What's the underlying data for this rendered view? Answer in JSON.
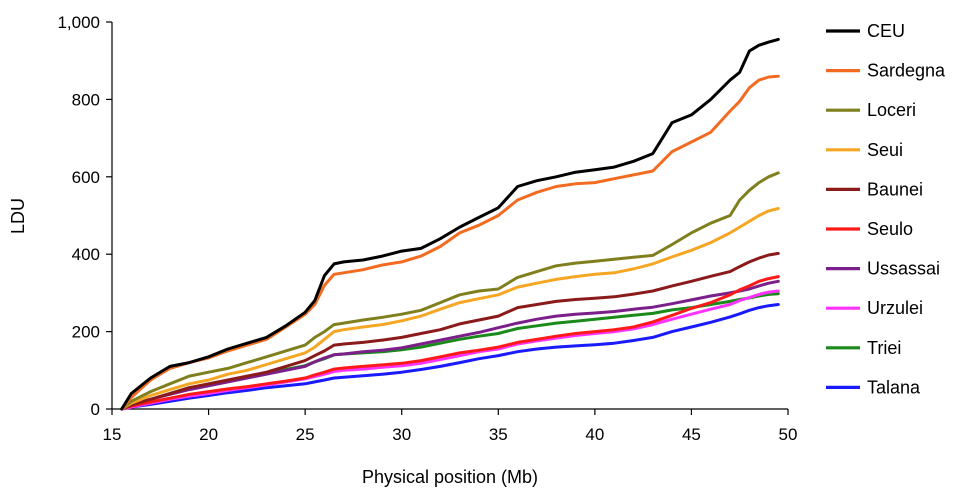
{
  "chart_data": {
    "type": "line",
    "xlabel": "Physical position (Mb)",
    "ylabel": "LDU",
    "xlim": [
      15,
      50
    ],
    "ylim": [
      0,
      1000
    ],
    "x_ticks": [
      "15",
      "20",
      "25",
      "30",
      "35",
      "40",
      "45",
      "50"
    ],
    "y_ticks": [
      "0",
      "200",
      "400",
      "600",
      "800",
      "1,000"
    ],
    "grid": false,
    "legend_position": "right",
    "x": [
      15.5,
      16,
      17,
      18,
      19,
      20,
      21,
      22,
      23,
      24,
      25,
      25.5,
      26,
      26.5,
      27,
      28,
      29,
      30,
      31,
      32,
      33,
      34,
      35,
      36,
      37,
      38,
      39,
      40,
      41,
      42,
      43,
      44,
      45,
      46,
      47,
      47.5,
      48,
      48.5,
      49,
      49.5
    ],
    "series": [
      {
        "name": "CEU",
        "color": "#000000",
        "values": [
          0,
          40,
          80,
          110,
          120,
          135,
          155,
          170,
          185,
          215,
          250,
          280,
          345,
          375,
          380,
          385,
          395,
          408,
          415,
          440,
          470,
          495,
          520,
          575,
          590,
          600,
          612,
          618,
          625,
          640,
          660,
          740,
          760,
          800,
          850,
          870,
          925,
          940,
          948,
          955
        ]
      },
      {
        "name": "Sardegna",
        "color": "#f26b21",
        "values": [
          0,
          30,
          75,
          105,
          120,
          132,
          150,
          165,
          180,
          212,
          245,
          270,
          320,
          348,
          352,
          360,
          372,
          380,
          395,
          420,
          455,
          475,
          500,
          540,
          560,
          575,
          582,
          585,
          595,
          605,
          615,
          665,
          690,
          715,
          770,
          795,
          830,
          850,
          858,
          860
        ]
      },
      {
        "name": "Loceri",
        "color": "#7f7f1e",
        "values": [
          0,
          20,
          45,
          65,
          85,
          95,
          105,
          120,
          135,
          150,
          165,
          185,
          200,
          218,
          222,
          230,
          237,
          245,
          255,
          275,
          295,
          305,
          310,
          340,
          355,
          370,
          377,
          382,
          387,
          392,
          397,
          425,
          455,
          480,
          500,
          540,
          565,
          585,
          600,
          610
        ]
      },
      {
        "name": "Seui",
        "color": "#f5a623",
        "values": [
          0,
          15,
          35,
          50,
          65,
          75,
          90,
          100,
          115,
          130,
          145,
          160,
          180,
          200,
          205,
          212,
          218,
          228,
          240,
          258,
          275,
          285,
          295,
          315,
          325,
          335,
          342,
          348,
          352,
          362,
          375,
          393,
          410,
          430,
          455,
          470,
          485,
          500,
          512,
          518
        ]
      },
      {
        "name": "Baunei",
        "color": "#8b1a1a",
        "values": [
          0,
          10,
          25,
          40,
          55,
          65,
          75,
          85,
          95,
          110,
          125,
          138,
          150,
          165,
          168,
          172,
          178,
          185,
          195,
          205,
          220,
          230,
          240,
          262,
          270,
          278,
          283,
          286,
          290,
          297,
          305,
          318,
          330,
          343,
          355,
          368,
          380,
          390,
          398,
          402
        ]
      },
      {
        "name": "Seulo",
        "color": "#ff1a1a",
        "values": [
          0,
          8,
          18,
          28,
          38,
          45,
          52,
          58,
          65,
          72,
          80,
          88,
          95,
          103,
          106,
          110,
          114,
          118,
          125,
          135,
          145,
          152,
          160,
          172,
          180,
          188,
          195,
          200,
          205,
          212,
          225,
          242,
          260,
          275,
          295,
          308,
          318,
          330,
          337,
          342
        ]
      },
      {
        "name": "Ussassai",
        "color": "#7b1f8a",
        "values": [
          0,
          10,
          25,
          38,
          50,
          60,
          70,
          80,
          90,
          100,
          110,
          122,
          132,
          140,
          142,
          148,
          152,
          158,
          168,
          178,
          188,
          198,
          210,
          222,
          232,
          240,
          245,
          248,
          252,
          258,
          263,
          272,
          282,
          292,
          300,
          305,
          310,
          318,
          325,
          330
        ]
      },
      {
        "name": "Urzulei",
        "color": "#ff33ff",
        "values": [
          0,
          5,
          15,
          25,
          33,
          40,
          48,
          55,
          62,
          70,
          78,
          84,
          90,
          97,
          100,
          103,
          108,
          112,
          118,
          128,
          138,
          148,
          155,
          168,
          176,
          183,
          190,
          195,
          200,
          207,
          218,
          232,
          245,
          258,
          270,
          280,
          288,
          296,
          302,
          305
        ]
      },
      {
        "name": "Triei",
        "color": "#1a8a1a",
        "values": [
          0,
          12,
          25,
          40,
          55,
          63,
          72,
          82,
          92,
          102,
          112,
          122,
          130,
          140,
          142,
          145,
          148,
          153,
          160,
          170,
          180,
          188,
          195,
          208,
          215,
          222,
          227,
          232,
          237,
          242,
          247,
          256,
          262,
          270,
          278,
          283,
          287,
          292,
          296,
          298
        ]
      },
      {
        "name": "Talana",
        "color": "#1a1aff",
        "values": [
          0,
          5,
          12,
          20,
          28,
          35,
          42,
          48,
          55,
          60,
          65,
          70,
          75,
          80,
          82,
          86,
          90,
          95,
          102,
          110,
          120,
          130,
          138,
          148,
          155,
          160,
          163,
          166,
          170,
          177,
          185,
          200,
          212,
          224,
          238,
          246,
          255,
          262,
          267,
          270
        ]
      }
    ]
  }
}
